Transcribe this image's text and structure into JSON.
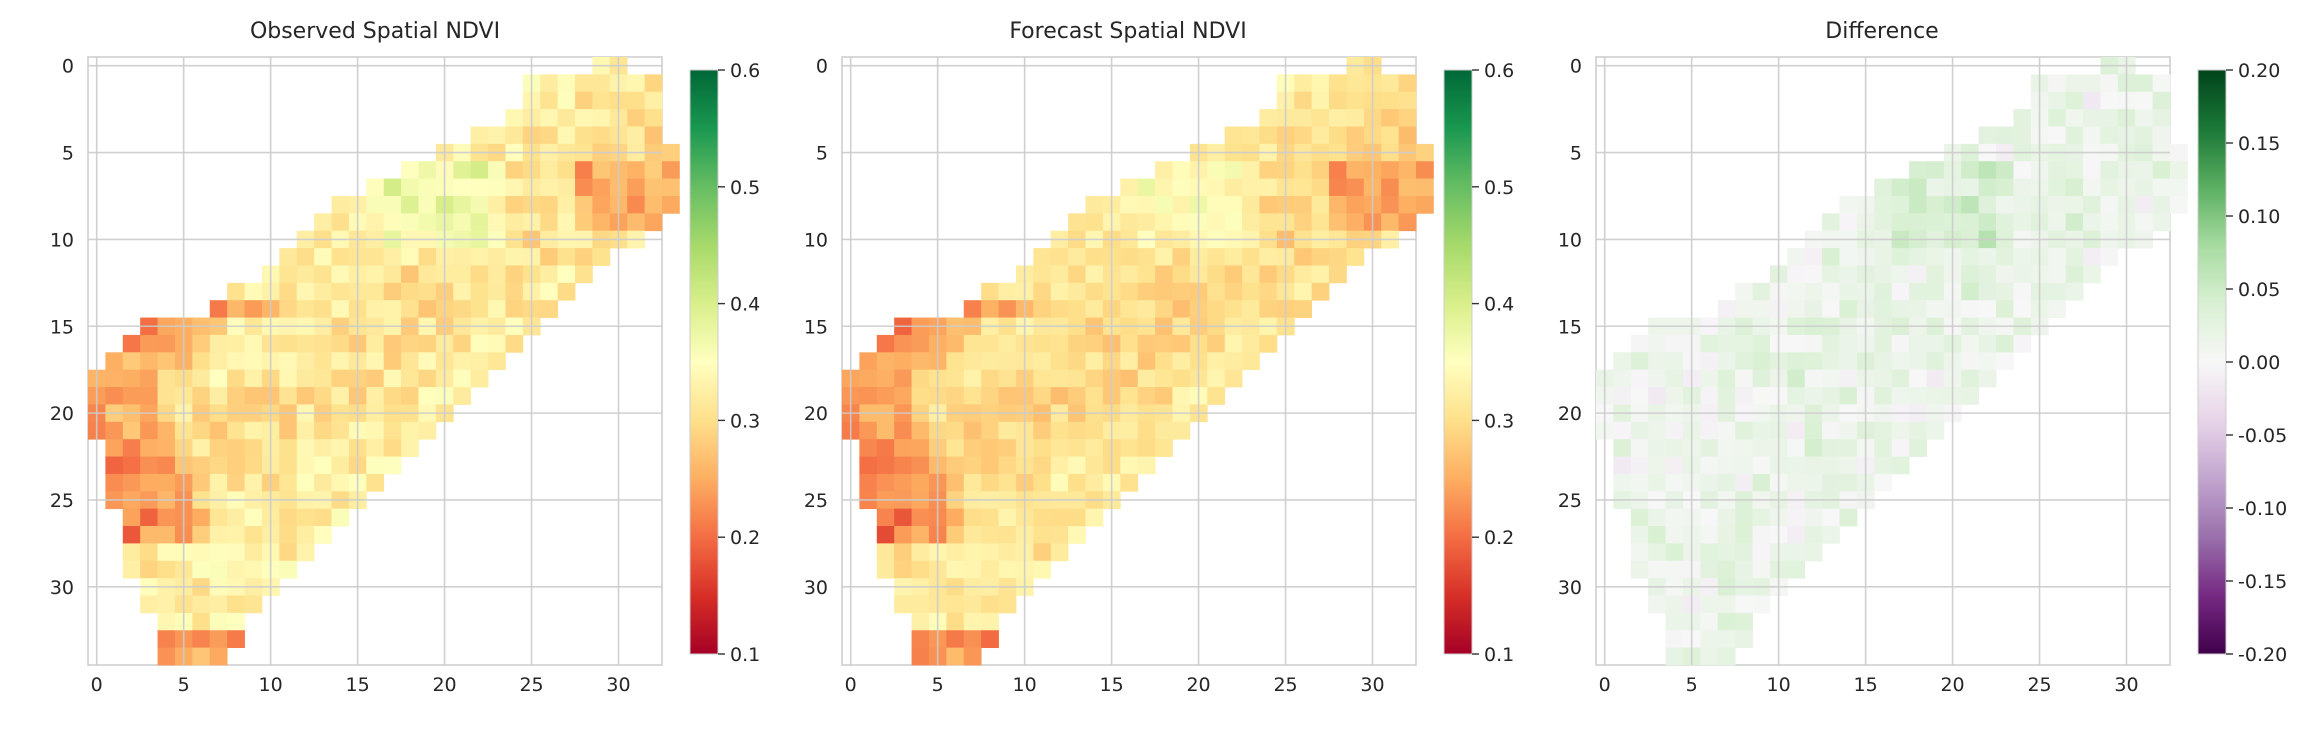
{
  "chart_data": [
    {
      "type": "heatmap",
      "title": "Observed Spatial NDVI",
      "colormap": "RdYlGn",
      "xlim": [
        -0.5,
        32.5
      ],
      "ylim": [
        34.5,
        -0.5
      ],
      "xticks": [
        0,
        5,
        10,
        15,
        20,
        25,
        30
      ],
      "yticks": [
        0,
        5,
        10,
        15,
        20,
        25,
        30
      ],
      "grid": true,
      "colorbar": {
        "range": [
          0.1,
          0.6
        ],
        "ticks": [
          0.1,
          0.2,
          0.3,
          0.4,
          0.5,
          0.6
        ],
        "tick_labels": [
          "0.1",
          "0.2",
          "0.3",
          "0.4",
          "0.5",
          "0.6"
        ]
      },
      "field_bias": 0.0,
      "valid_mask_rows": [
        [
          29,
          30
        ],
        [
          25,
          32
        ],
        [
          25,
          32
        ],
        [
          24,
          32
        ],
        [
          22,
          32
        ],
        [
          20,
          33
        ],
        [
          18,
          33
        ],
        [
          16,
          33
        ],
        [
          14,
          33
        ],
        [
          13,
          32
        ],
        [
          12,
          31
        ],
        [
          11,
          29
        ],
        [
          10,
          28
        ],
        [
          8,
          27
        ],
        [
          7,
          26
        ],
        [
          3,
          25
        ],
        [
          2,
          24
        ],
        [
          1,
          23
        ],
        [
          0,
          22
        ],
        [
          0,
          21
        ],
        [
          0,
          20
        ],
        [
          0,
          19
        ],
        [
          1,
          18
        ],
        [
          1,
          17
        ],
        [
          1,
          16
        ],
        [
          1,
          15
        ],
        [
          2,
          14
        ],
        [
          2,
          13
        ],
        [
          2,
          12
        ],
        [
          2,
          11
        ],
        [
          3,
          10
        ],
        [
          3,
          9
        ],
        [
          4,
          8
        ],
        [
          4,
          8
        ],
        [
          4,
          7
        ]
      ]
    },
    {
      "type": "heatmap",
      "title": "Forecast Spatial NDVI",
      "colormap": "RdYlGn",
      "xlim": [
        -0.5,
        32.5
      ],
      "ylim": [
        34.5,
        -0.5
      ],
      "xticks": [
        0,
        5,
        10,
        15,
        20,
        25,
        30
      ],
      "yticks": [
        0,
        5,
        10,
        15,
        20,
        25,
        30
      ],
      "grid": true,
      "colorbar": {
        "range": [
          0.1,
          0.6
        ],
        "ticks": [
          0.1,
          0.2,
          0.3,
          0.4,
          0.5,
          0.6
        ],
        "tick_labels": [
          "0.1",
          "0.2",
          "0.3",
          "0.4",
          "0.5",
          "0.6"
        ]
      },
      "field_bias": -0.01
    },
    {
      "type": "heatmap",
      "title": "Difference",
      "colormap": "PRGn",
      "xlim": [
        -0.5,
        32.5
      ],
      "ylim": [
        34.5,
        -0.5
      ],
      "xticks": [
        0,
        5,
        10,
        15,
        20,
        25,
        30
      ],
      "yticks": [
        0,
        5,
        10,
        15,
        20,
        25,
        30
      ],
      "grid": true,
      "colorbar": {
        "range": [
          -0.2,
          0.2
        ],
        "ticks": [
          -0.2,
          -0.15,
          -0.1,
          -0.05,
          0.0,
          0.05,
          0.1,
          0.15,
          0.2
        ],
        "tick_labels": [
          "-0.20",
          "-0.15",
          "-0.10",
          "-0.05",
          "0.00",
          "0.05",
          "0.10",
          "0.15",
          "0.20"
        ]
      }
    }
  ]
}
